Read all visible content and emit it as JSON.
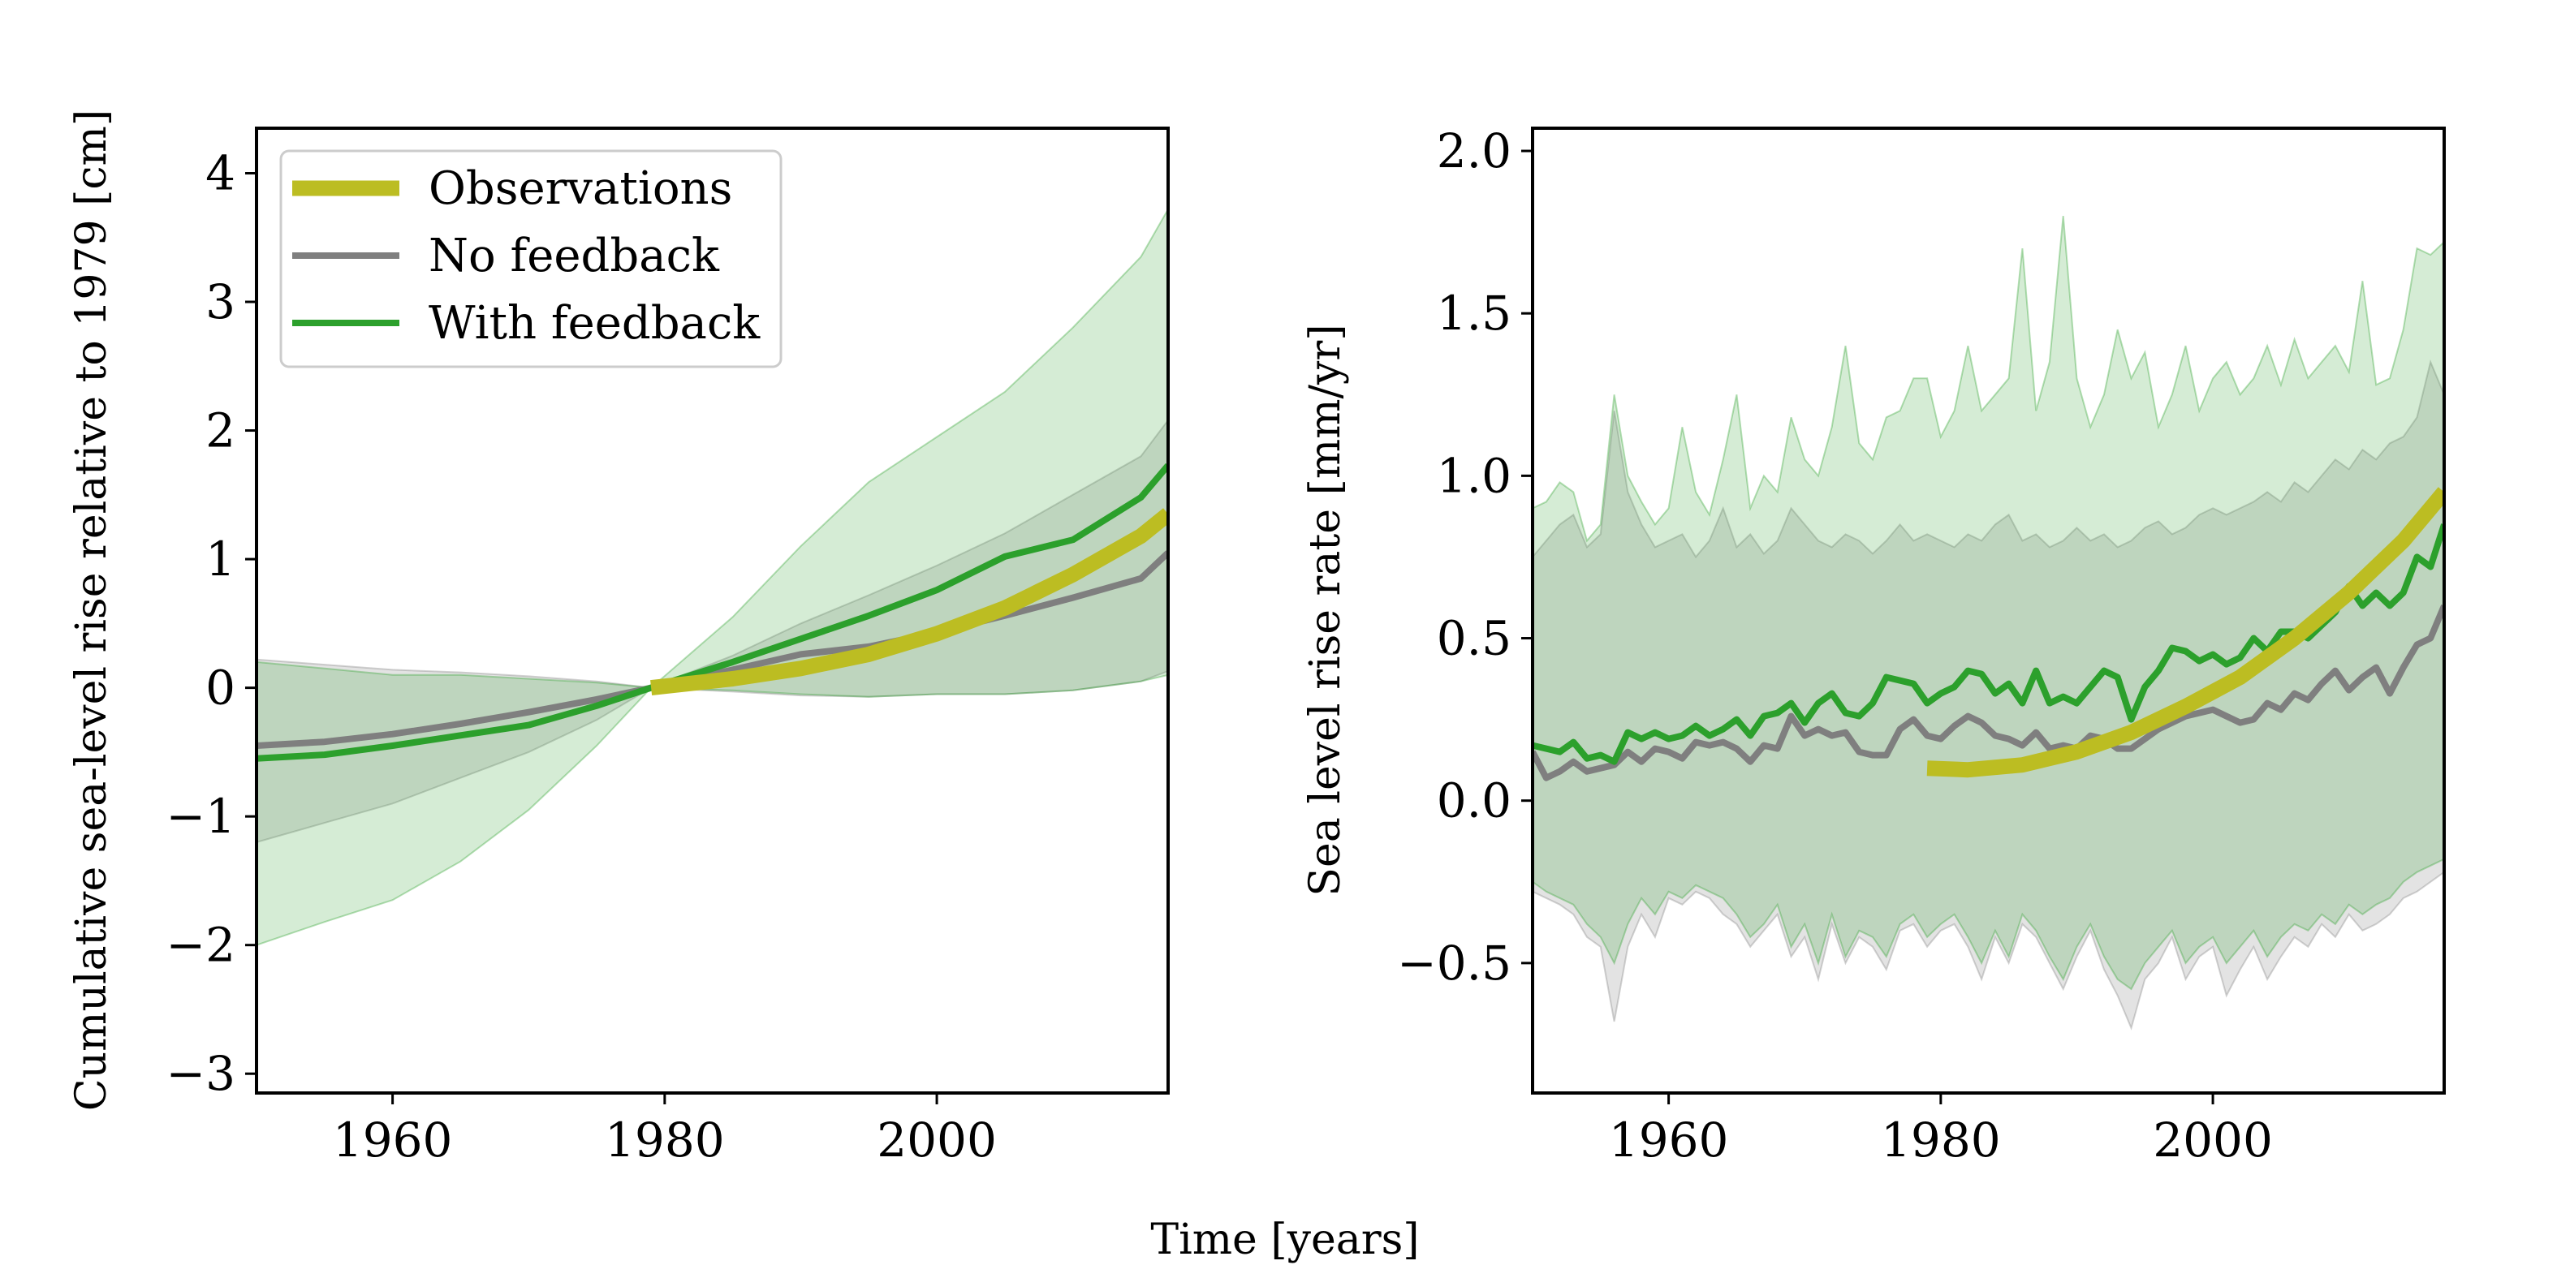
{
  "figure": {
    "xlabel_shared": "Time [years]"
  },
  "chart_data": [
    {
      "type": "line",
      "ylabel": "Cumulative sea-level rise relative to 1979 [cm]",
      "xlim": [
        1950,
        2017
      ],
      "ylim": [
        -3.15,
        4.35
      ],
      "xticks": [
        1960,
        1980,
        2000
      ],
      "yticks": [
        -3,
        -2,
        -1,
        0,
        1,
        2,
        3,
        4
      ],
      "yticklabels": [
        "−3",
        "−2",
        "−1",
        "0",
        "1",
        "2",
        "3",
        "4"
      ],
      "grid": false,
      "legend": {
        "placement": "top-left",
        "entries": [
          "Observations",
          "No feedback",
          "With feedback"
        ]
      },
      "series": [
        {
          "name": "Observations",
          "color": "#bcbd22",
          "x": [
            1979,
            1985,
            1990,
            1995,
            2000,
            2005,
            2010,
            2015,
            2017
          ],
          "y": [
            0,
            0.07,
            0.15,
            0.26,
            0.42,
            0.62,
            0.88,
            1.18,
            1.35
          ]
        },
        {
          "name": "No feedback",
          "color": "#7f7f7f",
          "x": [
            1950,
            1955,
            1960,
            1965,
            1970,
            1975,
            1979,
            1985,
            1990,
            1995,
            2000,
            2005,
            2010,
            2015,
            2017
          ],
          "y": [
            -0.45,
            -0.42,
            -0.36,
            -0.28,
            -0.19,
            -0.09,
            0,
            0.14,
            0.26,
            0.32,
            0.43,
            0.56,
            0.7,
            0.85,
            1.05
          ],
          "band_upper": [
            0.22,
            0.18,
            0.14,
            0.12,
            0.09,
            0.05,
            0,
            0.25,
            0.5,
            0.72,
            0.95,
            1.2,
            1.5,
            1.8,
            2.08
          ],
          "band_lower": [
            -1.2,
            -1.05,
            -0.9,
            -0.7,
            -0.5,
            -0.25,
            0,
            -0.03,
            -0.06,
            -0.07,
            -0.05,
            -0.05,
            -0.02,
            0.05,
            0.13
          ]
        },
        {
          "name": "With feedback",
          "color": "#2ca02c",
          "x": [
            1950,
            1955,
            1960,
            1965,
            1970,
            1975,
            1979,
            1985,
            1990,
            1995,
            2000,
            2005,
            2010,
            2015,
            2017
          ],
          "y": [
            -0.55,
            -0.52,
            -0.45,
            -0.37,
            -0.29,
            -0.14,
            0,
            0.2,
            0.38,
            0.56,
            0.76,
            1.02,
            1.15,
            1.48,
            1.73
          ],
          "band_upper": [
            0.2,
            0.15,
            0.1,
            0.1,
            0.07,
            0.04,
            0,
            0.55,
            1.1,
            1.6,
            1.95,
            2.3,
            2.8,
            3.35,
            3.72
          ],
          "band_lower": [
            -2,
            -1.82,
            -1.65,
            -1.35,
            -0.95,
            -0.45,
            0,
            -0.02,
            -0.05,
            -0.07,
            -0.05,
            -0.05,
            -0.02,
            0.05,
            0.1
          ]
        }
      ]
    },
    {
      "type": "line",
      "ylabel": "Sea level rise rate [mm/yr]",
      "xlim": [
        1950,
        2017
      ],
      "ylim": [
        -0.9,
        2.07
      ],
      "xticks": [
        1960,
        1980,
        2000
      ],
      "yticks": [
        -0.5,
        0,
        0.5,
        1,
        1.5,
        2
      ],
      "yticklabels": [
        "−0.5",
        "0.0",
        "0.5",
        "1.0",
        "1.5",
        "2.0"
      ],
      "grid": false,
      "series": [
        {
          "name": "Observations",
          "color": "#bcbd22",
          "x": [
            1979,
            1982,
            1986,
            1990,
            1994,
            1998,
            2002,
            2006,
            2010,
            2014,
            2017
          ],
          "y": [
            0.1,
            0.095,
            0.11,
            0.15,
            0.21,
            0.29,
            0.38,
            0.5,
            0.64,
            0.8,
            0.95
          ]
        },
        {
          "name": "No feedback",
          "color": "#7f7f7f",
          "x": [
            1950,
            1951,
            1952,
            1953,
            1954,
            1955,
            1956,
            1957,
            1958,
            1959,
            1960,
            1961,
            1962,
            1963,
            1964,
            1965,
            1966,
            1967,
            1968,
            1969,
            1970,
            1971,
            1972,
            1973,
            1974,
            1975,
            1976,
            1977,
            1978,
            1979,
            1980,
            1981,
            1982,
            1983,
            1984,
            1985,
            1986,
            1987,
            1988,
            1989,
            1990,
            1991,
            1992,
            1993,
            1994,
            1995,
            1996,
            1997,
            1998,
            1999,
            2000,
            2001,
            2002,
            2003,
            2004,
            2005,
            2006,
            2007,
            2008,
            2009,
            2010,
            2011,
            2012,
            2013,
            2014,
            2015,
            2016,
            2017
          ],
          "y": [
            0.15,
            0.07,
            0.09,
            0.12,
            0.09,
            0.1,
            0.11,
            0.15,
            0.12,
            0.16,
            0.15,
            0.13,
            0.18,
            0.17,
            0.18,
            0.16,
            0.12,
            0.17,
            0.16,
            0.26,
            0.2,
            0.22,
            0.2,
            0.21,
            0.15,
            0.14,
            0.14,
            0.22,
            0.25,
            0.2,
            0.19,
            0.23,
            0.26,
            0.24,
            0.2,
            0.19,
            0.17,
            0.21,
            0.16,
            0.17,
            0.16,
            0.2,
            0.19,
            0.16,
            0.16,
            0.19,
            0.22,
            0.24,
            0.26,
            0.27,
            0.28,
            0.26,
            0.24,
            0.25,
            0.3,
            0.28,
            0.33,
            0.31,
            0.36,
            0.4,
            0.34,
            0.38,
            0.41,
            0.33,
            0.41,
            0.48,
            0.5,
            0.6
          ],
          "band_upper": [
            0.75,
            0.8,
            0.85,
            0.88,
            0.78,
            0.82,
            1.2,
            0.95,
            0.85,
            0.78,
            0.8,
            0.82,
            0.75,
            0.8,
            0.9,
            0.78,
            0.82,
            0.76,
            0.8,
            0.9,
            0.85,
            0.8,
            0.78,
            0.82,
            0.8,
            0.76,
            0.8,
            0.85,
            0.8,
            0.82,
            0.8,
            0.78,
            0.82,
            0.8,
            0.85,
            0.88,
            0.8,
            0.82,
            0.78,
            0.8,
            0.84,
            0.8,
            0.82,
            0.78,
            0.8,
            0.84,
            0.86,
            0.82,
            0.84,
            0.88,
            0.9,
            0.88,
            0.9,
            0.92,
            0.95,
            0.92,
            0.98,
            0.95,
            1,
            1.05,
            1.02,
            1.08,
            1.05,
            1.1,
            1.12,
            1.18,
            1.35,
            1.25
          ],
          "band_lower": [
            -0.28,
            -0.3,
            -0.32,
            -0.35,
            -0.42,
            -0.45,
            -0.68,
            -0.45,
            -0.35,
            -0.42,
            -0.3,
            -0.32,
            -0.28,
            -0.3,
            -0.35,
            -0.38,
            -0.45,
            -0.4,
            -0.35,
            -0.48,
            -0.42,
            -0.55,
            -0.38,
            -0.5,
            -0.42,
            -0.45,
            -0.52,
            -0.4,
            -0.38,
            -0.45,
            -0.4,
            -0.38,
            -0.45,
            -0.55,
            -0.42,
            -0.5,
            -0.38,
            -0.42,
            -0.5,
            -0.58,
            -0.48,
            -0.4,
            -0.52,
            -0.6,
            -0.7,
            -0.55,
            -0.5,
            -0.42,
            -0.55,
            -0.48,
            -0.45,
            -0.6,
            -0.52,
            -0.45,
            -0.55,
            -0.48,
            -0.42,
            -0.45,
            -0.38,
            -0.42,
            -0.35,
            -0.4,
            -0.38,
            -0.35,
            -0.3,
            -0.28,
            -0.25,
            -0.22
          ]
        },
        {
          "name": "With feedback",
          "color": "#2ca02c",
          "x": [
            1950,
            1951,
            1952,
            1953,
            1954,
            1955,
            1956,
            1957,
            1958,
            1959,
            1960,
            1961,
            1962,
            1963,
            1964,
            1965,
            1966,
            1967,
            1968,
            1969,
            1970,
            1971,
            1972,
            1973,
            1974,
            1975,
            1976,
            1977,
            1978,
            1979,
            1980,
            1981,
            1982,
            1983,
            1984,
            1985,
            1986,
            1987,
            1988,
            1989,
            1990,
            1991,
            1992,
            1993,
            1994,
            1995,
            1996,
            1997,
            1998,
            1999,
            2000,
            2001,
            2002,
            2003,
            2004,
            2005,
            2006,
            2007,
            2008,
            2009,
            2010,
            2011,
            2012,
            2013,
            2014,
            2015,
            2016,
            2017
          ],
          "y": [
            0.17,
            0.16,
            0.15,
            0.18,
            0.13,
            0.14,
            0.12,
            0.21,
            0.19,
            0.21,
            0.19,
            0.2,
            0.23,
            0.2,
            0.22,
            0.25,
            0.2,
            0.26,
            0.27,
            0.3,
            0.24,
            0.3,
            0.33,
            0.27,
            0.26,
            0.3,
            0.38,
            0.37,
            0.36,
            0.3,
            0.33,
            0.35,
            0.4,
            0.39,
            0.33,
            0.36,
            0.3,
            0.4,
            0.3,
            0.32,
            0.3,
            0.35,
            0.4,
            0.38,
            0.25,
            0.35,
            0.4,
            0.47,
            0.46,
            0.43,
            0.45,
            0.42,
            0.44,
            0.5,
            0.46,
            0.52,
            0.52,
            0.5,
            0.54,
            0.58,
            0.66,
            0.6,
            0.64,
            0.6,
            0.64,
            0.75,
            0.72,
            0.85
          ],
          "band_upper": [
            0.9,
            0.92,
            0.98,
            0.95,
            0.8,
            0.85,
            1.25,
            1.0,
            0.92,
            0.85,
            0.9,
            1.15,
            0.95,
            0.88,
            1.05,
            1.25,
            0.9,
            1.0,
            0.95,
            1.18,
            1.05,
            1.0,
            1.15,
            1.4,
            1.1,
            1.05,
            1.18,
            1.2,
            1.3,
            1.3,
            1.12,
            1.2,
            1.4,
            1.2,
            1.25,
            1.3,
            1.7,
            1.2,
            1.35,
            1.8,
            1.3,
            1.15,
            1.25,
            1.45,
            1.3,
            1.38,
            1.15,
            1.25,
            1.4,
            1.2,
            1.3,
            1.35,
            1.25,
            1.3,
            1.4,
            1.28,
            1.42,
            1.3,
            1.35,
            1.4,
            1.32,
            1.6,
            1.28,
            1.3,
            1.45,
            1.7,
            1.68,
            1.72
          ],
          "band_lower": [
            -0.25,
            -0.28,
            -0.3,
            -0.32,
            -0.38,
            -0.42,
            -0.5,
            -0.38,
            -0.3,
            -0.35,
            -0.28,
            -0.3,
            -0.26,
            -0.28,
            -0.3,
            -0.35,
            -0.42,
            -0.38,
            -0.32,
            -0.45,
            -0.38,
            -0.5,
            -0.35,
            -0.48,
            -0.4,
            -0.42,
            -0.48,
            -0.38,
            -0.35,
            -0.42,
            -0.38,
            -0.35,
            -0.42,
            -0.5,
            -0.4,
            -0.48,
            -0.35,
            -0.4,
            -0.48,
            -0.55,
            -0.45,
            -0.38,
            -0.48,
            -0.55,
            -0.58,
            -0.5,
            -0.45,
            -0.4,
            -0.5,
            -0.45,
            -0.42,
            -0.5,
            -0.45,
            -0.4,
            -0.48,
            -0.42,
            -0.38,
            -0.4,
            -0.35,
            -0.38,
            -0.32,
            -0.35,
            -0.32,
            -0.3,
            -0.25,
            -0.22,
            -0.2,
            -0.18
          ]
        }
      ]
    }
  ]
}
